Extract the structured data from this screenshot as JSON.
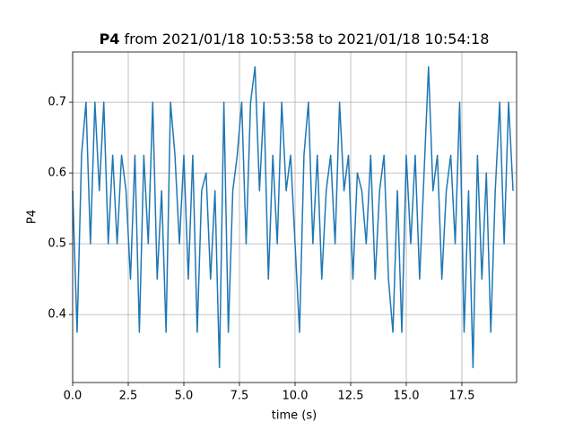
{
  "chart_data": {
    "type": "line",
    "title_parts": [
      "P4",
      "from 2021/01/18 10:53:58 to 2021/01/18 10:54:18"
    ],
    "xlabel": "time (s)",
    "ylabel": "P4",
    "x": [
      0.0,
      0.2,
      0.4,
      0.6,
      0.8,
      1.0,
      1.2,
      1.4,
      1.6,
      1.8,
      2.0,
      2.2,
      2.4,
      2.6,
      2.8,
      3.0,
      3.2,
      3.4,
      3.6,
      3.8,
      4.0,
      4.2,
      4.4,
      4.6,
      4.8,
      5.0,
      5.2,
      5.4,
      5.6,
      5.8,
      6.0,
      6.2,
      6.4,
      6.6,
      6.8,
      7.0,
      7.2,
      7.4,
      7.6,
      7.8,
      8.0,
      8.2,
      8.4,
      8.6,
      8.8,
      9.0,
      9.2,
      9.4,
      9.6,
      9.8,
      10.0,
      10.2,
      10.4,
      10.6,
      10.8,
      11.0,
      11.2,
      11.4,
      11.6,
      11.8,
      12.0,
      12.2,
      12.4,
      12.6,
      12.8,
      13.0,
      13.2,
      13.4,
      13.6,
      13.8,
      14.0,
      14.2,
      14.4,
      14.6,
      14.8,
      15.0,
      15.2,
      15.4,
      15.6,
      15.8,
      16.0,
      16.2,
      16.4,
      16.6,
      16.8,
      17.0,
      17.2,
      17.4,
      17.6,
      17.8,
      18.0,
      18.2,
      18.4,
      18.6,
      18.8,
      19.0,
      19.2,
      19.4,
      19.6,
      19.8
    ],
    "series": [
      {
        "name": "P4",
        "color": "#1f77b4",
        "values": [
          0.575,
          0.375,
          0.625,
          0.7,
          0.5,
          0.7,
          0.575,
          0.7,
          0.5,
          0.625,
          0.5,
          0.625,
          0.575,
          0.45,
          0.625,
          0.375,
          0.625,
          0.5,
          0.7,
          0.45,
          0.575,
          0.375,
          0.7,
          0.625,
          0.5,
          0.625,
          0.45,
          0.625,
          0.375,
          0.575,
          0.6,
          0.45,
          0.575,
          0.325,
          0.7,
          0.375,
          0.575,
          0.625,
          0.7,
          0.5,
          0.7,
          0.75,
          0.575,
          0.7,
          0.45,
          0.625,
          0.5,
          0.7,
          0.575,
          0.625,
          0.5,
          0.375,
          0.625,
          0.7,
          0.5,
          0.625,
          0.45,
          0.575,
          0.625,
          0.5,
          0.7,
          0.575,
          0.625,
          0.45,
          0.6,
          0.575,
          0.5,
          0.625,
          0.45,
          0.575,
          0.625,
          0.45,
          0.375,
          0.575,
          0.375,
          0.625,
          0.5,
          0.625,
          0.45,
          0.6,
          0.75,
          0.575,
          0.625,
          0.45,
          0.575,
          0.625,
          0.5,
          0.7,
          0.375,
          0.575,
          0.325,
          0.625,
          0.45,
          0.6,
          0.375,
          0.575,
          0.7,
          0.5,
          0.7,
          0.575
        ]
      }
    ],
    "xlim": [
      0,
      19.96
    ],
    "ylim": [
      0.304,
      0.771
    ],
    "xticks": [
      {
        "value": 0,
        "label": "0.0"
      },
      2.5,
      {
        "value": 5,
        "label": "5.0"
      },
      7.5,
      {
        "value": 10,
        "label": "10.0"
      },
      12.5,
      {
        "value": 15,
        "label": "15.0"
      },
      17.5
    ],
    "yticks": [
      0.4,
      0.5,
      0.6,
      0.7
    ],
    "grid": true
  }
}
